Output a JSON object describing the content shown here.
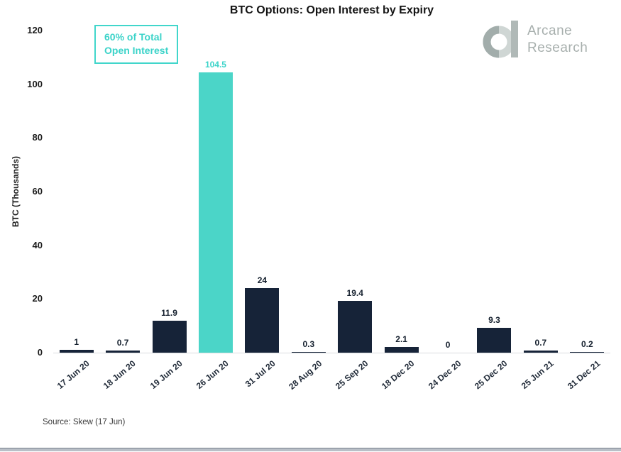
{
  "title": "BTC Options: Open Interest by Expiry",
  "logo": {
    "line1": "Arcane",
    "line2": "Research"
  },
  "annotation": {
    "line1": "60% of Total",
    "line2": "Open Interest"
  },
  "y_axis": {
    "label": "BTC (Thousands)",
    "ticks": [
      0,
      20,
      40,
      60,
      80,
      100,
      120
    ]
  },
  "source": "Source: Skew (17 Jun)",
  "colors": {
    "bar": "#162338",
    "highlight_bar": "#4bd5c8",
    "accent_text": "#3bd3c9",
    "axis_line": "#d9dcde",
    "logo_gray_dark": "#a2adab",
    "logo_gray_light": "#cfd6d4",
    "logo_bar": "#b0b9b7"
  },
  "chart_data": {
    "type": "bar",
    "title": "BTC Options: Open Interest by Expiry",
    "categories": [
      "17 Jun 20",
      "18 Jun 20",
      "19 Jun 20",
      "26 Jun 20",
      "31 Jul 20",
      "28 Aug 20",
      "25 Sep 20",
      "18 Dec 20",
      "24 Dec 20",
      "25 Dec 20",
      "25 Jun 21",
      "31 Dec 21"
    ],
    "values": [
      1,
      0.7,
      11.9,
      104.5,
      24,
      0.3,
      19.4,
      2.1,
      0,
      9.3,
      0.7,
      0.2
    ],
    "value_labels": [
      "1",
      "0.7",
      "11.9",
      "104.5",
      "24",
      "0.3",
      "19.4",
      "2.1",
      "0",
      "9.3",
      "0.7",
      "0.2"
    ],
    "highlight_index": 3,
    "highlight_annotation": "60% of Total Open Interest",
    "xlabel": "",
    "ylabel": "BTC (Thousands)",
    "ylim": [
      0,
      120
    ],
    "y_tick_step": 20,
    "grid": false,
    "legend": false
  }
}
